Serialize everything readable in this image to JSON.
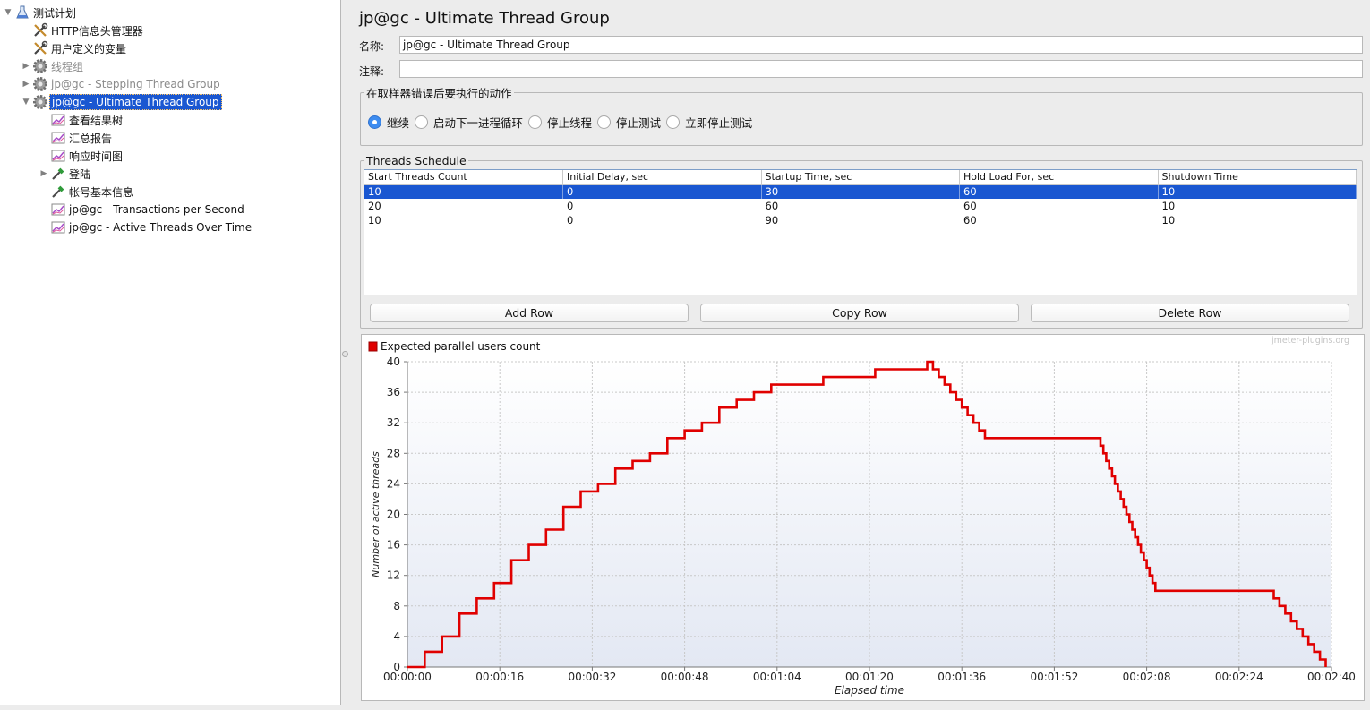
{
  "tree": {
    "items": [
      {
        "label": "测试计划",
        "icon": "test-plan-flask-icon",
        "indent": 0,
        "expander": "▼",
        "state": "normal"
      },
      {
        "label": "HTTP信息头管理器",
        "icon": "config-tools-icon",
        "indent": 1,
        "expander": "",
        "state": "normal"
      },
      {
        "label": "用户定义的变量",
        "icon": "config-tools-icon",
        "indent": 1,
        "expander": "",
        "state": "normal"
      },
      {
        "label": "线程组",
        "icon": "thread-group-gear-icon",
        "indent": 1,
        "expander": "▶",
        "state": "disabled"
      },
      {
        "label": "jp@gc - Stepping Thread Group",
        "icon": "thread-group-gear-icon",
        "indent": 1,
        "expander": "▶",
        "state": "disabled"
      },
      {
        "label": "jp@gc - Ultimate Thread Group",
        "icon": "thread-group-gear-icon",
        "indent": 1,
        "expander": "▼",
        "state": "selected"
      },
      {
        "label": "查看结果树",
        "icon": "listener-graph-icon",
        "indent": 2,
        "expander": "",
        "state": "normal"
      },
      {
        "label": "汇总报告",
        "icon": "listener-graph-icon",
        "indent": 2,
        "expander": "",
        "state": "normal"
      },
      {
        "label": "响应时间图",
        "icon": "listener-graph-icon",
        "indent": 2,
        "expander": "",
        "state": "normal"
      },
      {
        "label": "登陆",
        "icon": "sampler-pipette-icon",
        "indent": 2,
        "expander": "▶",
        "state": "normal"
      },
      {
        "label": "帐号基本信息",
        "icon": "sampler-pipette-icon",
        "indent": 2,
        "expander": "",
        "state": "normal"
      },
      {
        "label": "jp@gc - Transactions per Second",
        "icon": "listener-graph-icon",
        "indent": 2,
        "expander": "",
        "state": "normal"
      },
      {
        "label": "jp@gc - Active Threads Over Time",
        "icon": "listener-graph-icon",
        "indent": 2,
        "expander": "",
        "state": "normal"
      }
    ]
  },
  "panel": {
    "title": "jp@gc - Ultimate Thread Group",
    "name_label": "名称:",
    "name_value": "jp@gc - Ultimate Thread Group",
    "comment_label": "注释:",
    "comment_value": ""
  },
  "error_action": {
    "legend": "在取样器错误后要执行的动作",
    "options": [
      {
        "label": "继续",
        "selected": true
      },
      {
        "label": "启动下一进程循环",
        "selected": false
      },
      {
        "label": "停止线程",
        "selected": false
      },
      {
        "label": "停止测试",
        "selected": false
      },
      {
        "label": "立即停止测试",
        "selected": false
      }
    ]
  },
  "schedule": {
    "legend": "Threads Schedule",
    "columns": [
      "Start Threads Count",
      "Initial Delay, sec",
      "Startup Time, sec",
      "Hold Load For, sec",
      "Shutdown Time"
    ],
    "rows": [
      [
        "10",
        "0",
        "30",
        "60",
        "10"
      ],
      [
        "20",
        "0",
        "60",
        "60",
        "10"
      ],
      [
        "10",
        "0",
        "90",
        "60",
        "10"
      ]
    ],
    "selected_row": 0
  },
  "buttons": {
    "add": "Add Row",
    "copy": "Copy Row",
    "delete": "Delete Row"
  },
  "chart_data": {
    "type": "line",
    "legend": "Expected parallel users count",
    "watermark": "jmeter-plugins.org",
    "xlabel": "Elapsed time",
    "ylabel": "Number of active threads",
    "line_color": "#e00000",
    "xlim": [
      0,
      160
    ],
    "ylim": [
      0,
      40
    ],
    "x_ticks": [
      "00:00:00",
      "00:00:16",
      "00:00:32",
      "00:00:48",
      "00:01:04",
      "00:01:20",
      "00:01:36",
      "00:01:52",
      "00:02:08",
      "00:02:24",
      "00:02:40"
    ],
    "y_ticks": [
      0,
      4,
      8,
      12,
      16,
      20,
      24,
      28,
      32,
      36,
      40
    ],
    "series": [
      {
        "points": [
          [
            0,
            0
          ],
          [
            3,
            0
          ],
          [
            3,
            2
          ],
          [
            6,
            2
          ],
          [
            6,
            4
          ],
          [
            9,
            4
          ],
          [
            9,
            7
          ],
          [
            12,
            7
          ],
          [
            12,
            9
          ],
          [
            15,
            9
          ],
          [
            15,
            11
          ],
          [
            18,
            11
          ],
          [
            18,
            14
          ],
          [
            21,
            14
          ],
          [
            21,
            16
          ],
          [
            24,
            16
          ],
          [
            24,
            18
          ],
          [
            27,
            18
          ],
          [
            27,
            21
          ],
          [
            30,
            21
          ],
          [
            30,
            23
          ],
          [
            33,
            23
          ],
          [
            33,
            24
          ],
          [
            36,
            24
          ],
          [
            36,
            26
          ],
          [
            39,
            26
          ],
          [
            39,
            27
          ],
          [
            42,
            27
          ],
          [
            42,
            28
          ],
          [
            45,
            28
          ],
          [
            45,
            30
          ],
          [
            48,
            30
          ],
          [
            48,
            31
          ],
          [
            51,
            31
          ],
          [
            51,
            32
          ],
          [
            54,
            32
          ],
          [
            54,
            34
          ],
          [
            57,
            34
          ],
          [
            57,
            35
          ],
          [
            60,
            35
          ],
          [
            60,
            36
          ],
          [
            63,
            36
          ],
          [
            63,
            37
          ],
          [
            72,
            37
          ],
          [
            72,
            38
          ],
          [
            81,
            38
          ],
          [
            81,
            39
          ],
          [
            90,
            39
          ],
          [
            90,
            40
          ],
          [
            91,
            40
          ],
          [
            91,
            39
          ],
          [
            92,
            39
          ],
          [
            92,
            38
          ],
          [
            93,
            38
          ],
          [
            93,
            37
          ],
          [
            94,
            37
          ],
          [
            94,
            36
          ],
          [
            95,
            36
          ],
          [
            95,
            35
          ],
          [
            96,
            35
          ],
          [
            96,
            34
          ],
          [
            97,
            34
          ],
          [
            97,
            33
          ],
          [
            98,
            33
          ],
          [
            98,
            32
          ],
          [
            99,
            32
          ],
          [
            99,
            31
          ],
          [
            100,
            31
          ],
          [
            100,
            30
          ],
          [
            120,
            30
          ],
          [
            120,
            29
          ],
          [
            120.5,
            29
          ],
          [
            120.5,
            28
          ],
          [
            121,
            28
          ],
          [
            121,
            27
          ],
          [
            121.5,
            27
          ],
          [
            121.5,
            26
          ],
          [
            122,
            26
          ],
          [
            122,
            25
          ],
          [
            122.5,
            25
          ],
          [
            122.5,
            24
          ],
          [
            123,
            24
          ],
          [
            123,
            23
          ],
          [
            123.5,
            23
          ],
          [
            123.5,
            22
          ],
          [
            124,
            22
          ],
          [
            124,
            21
          ],
          [
            124.5,
            21
          ],
          [
            124.5,
            20
          ],
          [
            125,
            20
          ],
          [
            125,
            19
          ],
          [
            125.5,
            19
          ],
          [
            125.5,
            18
          ],
          [
            126,
            18
          ],
          [
            126,
            17
          ],
          [
            126.5,
            17
          ],
          [
            126.5,
            16
          ],
          [
            127,
            16
          ],
          [
            127,
            15
          ],
          [
            127.5,
            15
          ],
          [
            127.5,
            14
          ],
          [
            128,
            14
          ],
          [
            128,
            13
          ],
          [
            128.5,
            13
          ],
          [
            128.5,
            12
          ],
          [
            129,
            12
          ],
          [
            129,
            11
          ],
          [
            129.5,
            11
          ],
          [
            129.5,
            10
          ],
          [
            150,
            10
          ],
          [
            150,
            9
          ],
          [
            151,
            9
          ],
          [
            151,
            8
          ],
          [
            152,
            8
          ],
          [
            152,
            7
          ],
          [
            153,
            7
          ],
          [
            153,
            6
          ],
          [
            154,
            6
          ],
          [
            154,
            5
          ],
          [
            155,
            5
          ],
          [
            155,
            4
          ],
          [
            156,
            4
          ],
          [
            156,
            3
          ],
          [
            157,
            3
          ],
          [
            157,
            2
          ],
          [
            158,
            2
          ],
          [
            158,
            1
          ],
          [
            159,
            1
          ],
          [
            159,
            0
          ]
        ]
      }
    ]
  }
}
